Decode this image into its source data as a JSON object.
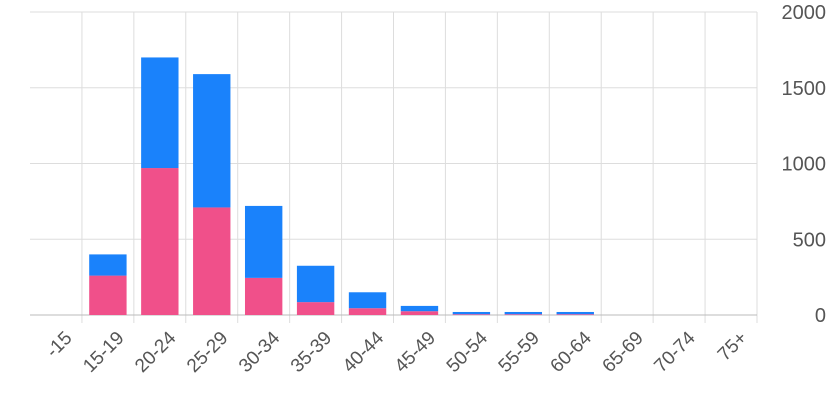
{
  "chart_data": {
    "type": "stacked-bar",
    "categories": [
      "-15",
      "15-19",
      "20-24",
      "25-29",
      "30-34",
      "35-39",
      "40-44",
      "45-49",
      "50-54",
      "55-59",
      "60-64",
      "65-69",
      "70-74",
      "75+"
    ],
    "series": [
      {
        "color": "#f0508a",
        "values": [
          0,
          260,
          970,
          710,
          245,
          85,
          45,
          25,
          5,
          5,
          5,
          0,
          0,
          0
        ]
      },
      {
        "color": "#1a82fb",
        "values": [
          0,
          140,
          730,
          880,
          475,
          240,
          105,
          35,
          15,
          15,
          15,
          0,
          0,
          0
        ]
      }
    ],
    "ylim": [
      0,
      2000
    ],
    "yticks": [
      0,
      500,
      1000,
      1500,
      2000
    ],
    "grid": true
  }
}
